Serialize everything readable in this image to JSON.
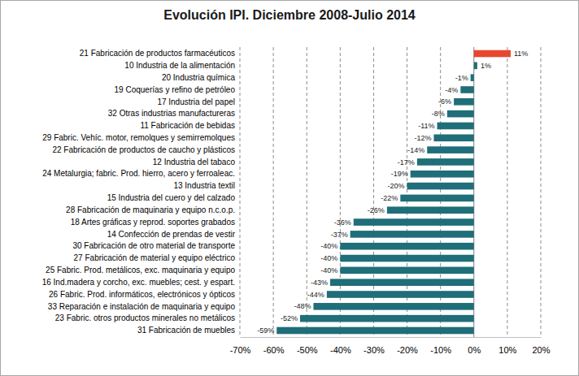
{
  "chart_data": {
    "type": "bar",
    "orientation": "horizontal",
    "title": "Evolución IPI. Diciembre 2008-Julio 2014",
    "categories": [
      "21 Fabricación de productos farmacéuticos",
      "10 Industria de la alimentación",
      "20 Industria química",
      "19 Coquerías y refino de petróleo",
      "17 Industria del papel",
      "32 Otras industrias manufactureras",
      "11 Fabricación de bebidas",
      "29 Fabric. Vehíc. motor, remolques y semirremolques",
      "22 Fabricación de productos de caucho y plásticos",
      "12 Industria del tabaco",
      "24 Metalurgia; fabric. Prod. hierro, acero y ferroaleac.",
      "13 Industria textil",
      "15 Industria del cuero y del calzado",
      "28 Fabricación de maquinaria y equipo n.c.o.p.",
      "18 Artes gráficas y reprod. soportes grabados",
      "14 Confección de prendas de vestir",
      "30 Fabricación de otro material de transporte",
      "27 Fabricación de material y equipo eléctrico",
      "25 Fabric. Prod. metálicos, exc. maquinaria y equipo",
      "16 Ind.madera y corcho, exc. muebles; cest. y espart.",
      "26 Fabric. Prod. informáticos, electrónicos y ópticos",
      "33 Reparación e instalación de maquinaria y equipo",
      "23 Fabric. otros productos minerales no metálicos",
      "31 Fabricación de muebles"
    ],
    "values": [
      11,
      1,
      -1,
      -4,
      -6,
      -8,
      -11,
      -12,
      -14,
      -17,
      -19,
      -20,
      -22,
      -26,
      -36,
      -37,
      -40,
      -40,
      -40,
      -43,
      -44,
      -48,
      -52,
      -59
    ],
    "value_labels": [
      "11%",
      "1%",
      "-1%",
      "-4%",
      "-6%",
      "-8%",
      "-11%",
      "-12%",
      "-14%",
      "-17%",
      "-19%",
      "-20%",
      "-22%",
      "-26%",
      "-36%",
      "-37%",
      "-40%",
      "-40%",
      "-40%",
      "-43%",
      "-44%",
      "-48%",
      "-52%",
      "-59%"
    ],
    "colors": [
      "#e8472f",
      "#1f6e79",
      "#1f6e79",
      "#1f6e79",
      "#1f6e79",
      "#1f6e79",
      "#1f6e79",
      "#1f6e79",
      "#1f6e79",
      "#1f6e79",
      "#1f6e79",
      "#1f6e79",
      "#1f6e79",
      "#1f6e79",
      "#1f6e79",
      "#1f6e79",
      "#1f6e79",
      "#1f6e79",
      "#1f6e79",
      "#1f6e79",
      "#1f6e79",
      "#1f6e79",
      "#1f6e79",
      "#1f6e79"
    ],
    "xlim": [
      -70,
      20
    ],
    "xticks": [
      {
        "value": -70,
        "label": "-70%"
      },
      {
        "value": -60,
        "label": "-60%"
      },
      {
        "value": -50,
        "label": "-50%"
      },
      {
        "value": -40,
        "label": "-40%"
      },
      {
        "value": -30,
        "label": "-30%"
      },
      {
        "value": -20,
        "label": "-20%"
      },
      {
        "value": -10,
        "label": "-10%"
      },
      {
        "value": 0,
        "label": "0%"
      },
      {
        "value": 10,
        "label": "10%"
      },
      {
        "value": 20,
        "label": "20%"
      }
    ],
    "grid": true,
    "data_labels": true
  }
}
